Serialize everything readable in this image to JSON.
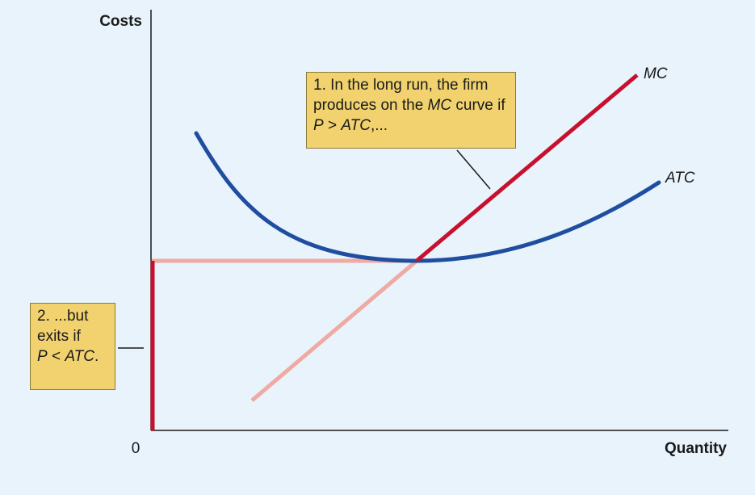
{
  "axes": {
    "y_label": "Costs",
    "x_label": "Quantity",
    "origin": "0"
  },
  "curves": {
    "mc": "MC",
    "atc": "ATC"
  },
  "callout_1": {
    "line1": "1. In the long run, the firm",
    "line2_a": "produces on the ",
    "line2_b": "MC",
    "line2_c": " curve if",
    "line3_a": "P",
    "line3_b": " > ",
    "line3_c": "ATC",
    "line3_d": ",..."
  },
  "callout_2": {
    "line1": "2. ...but",
    "line2": "exits if",
    "line3_a": "P",
    "line3_b": " < ",
    "line3_c": "ATC",
    "line3_d": "."
  },
  "colors": {
    "mc_curve": "#c8102e",
    "atc_curve": "#1f4ea1",
    "faded_curve": "#eeaaa3",
    "callout_fill": "#f1d26f",
    "background": "#e9f3fb"
  }
}
